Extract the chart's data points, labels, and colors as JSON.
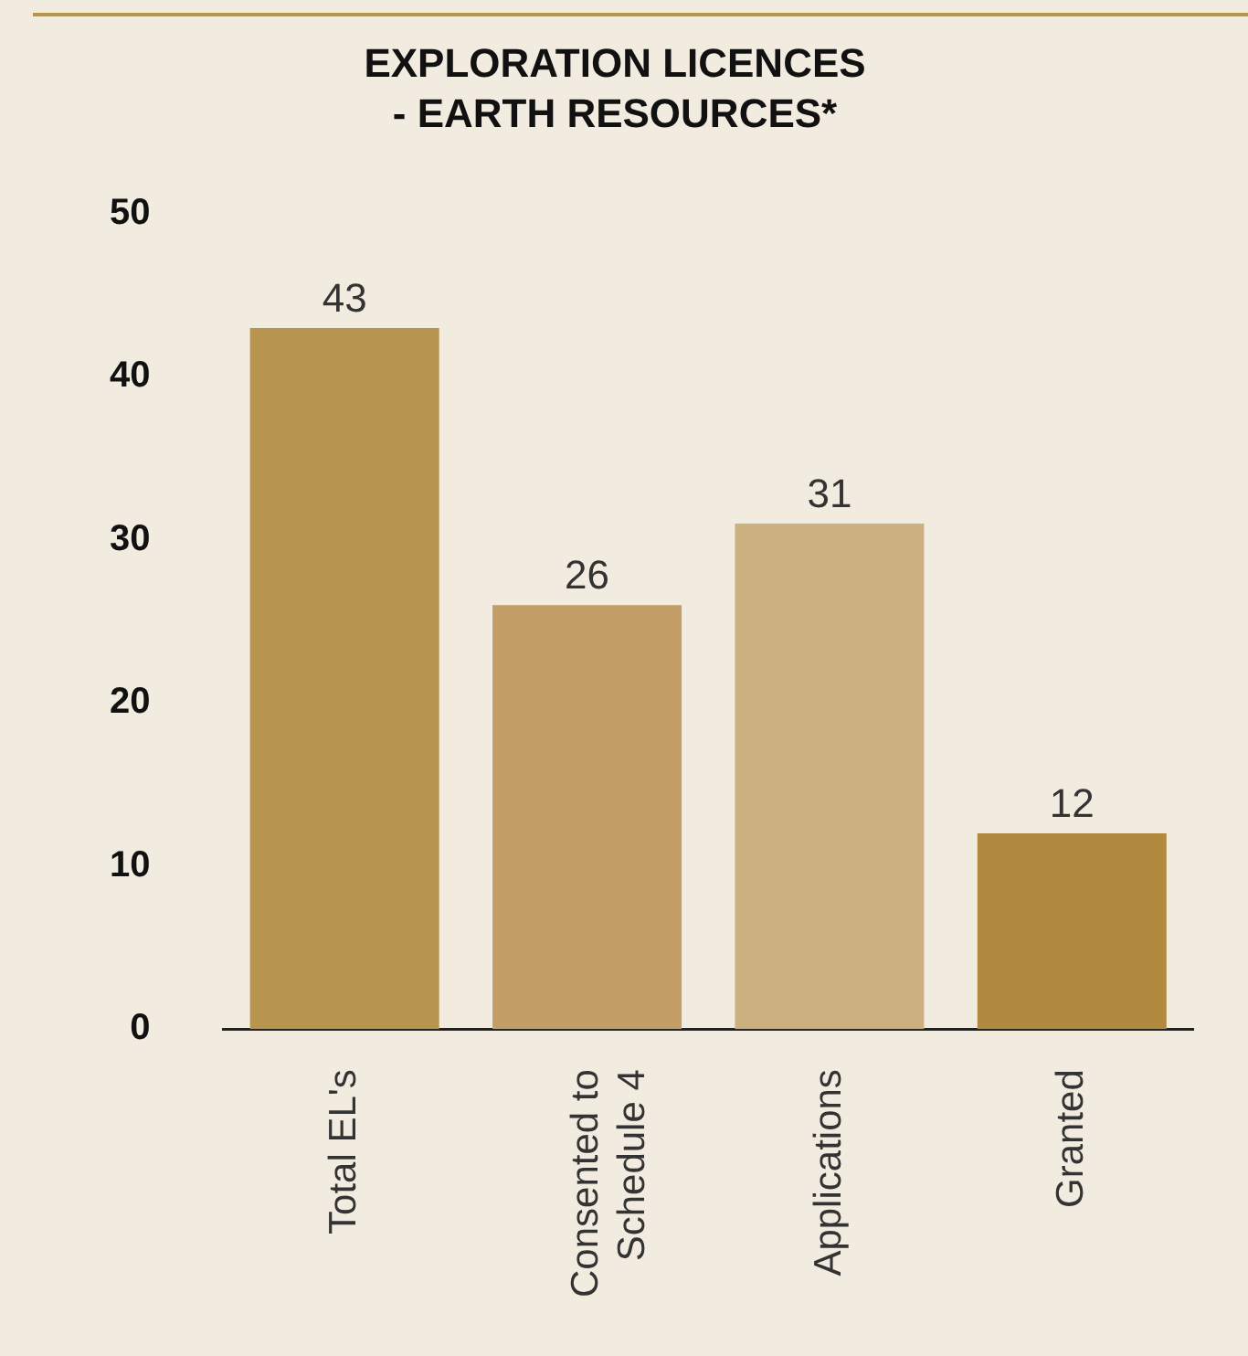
{
  "chart_data": {
    "type": "bar",
    "title": "EXPLORATION LICENCES\n- EARTH RESOURCES*",
    "categories": [
      "Total EL's",
      "Consented to Schedule 4",
      "Applications",
      "Granted"
    ],
    "values": [
      43,
      26,
      31,
      12
    ],
    "colors": [
      "#b8954f",
      "#c49e67",
      "#cdb07f",
      "#b08a3e"
    ],
    "ylim": [
      0,
      50
    ],
    "yticks": [
      0,
      10,
      20,
      30,
      40,
      50
    ],
    "grid": false,
    "legend": false,
    "data_labels": true
  }
}
